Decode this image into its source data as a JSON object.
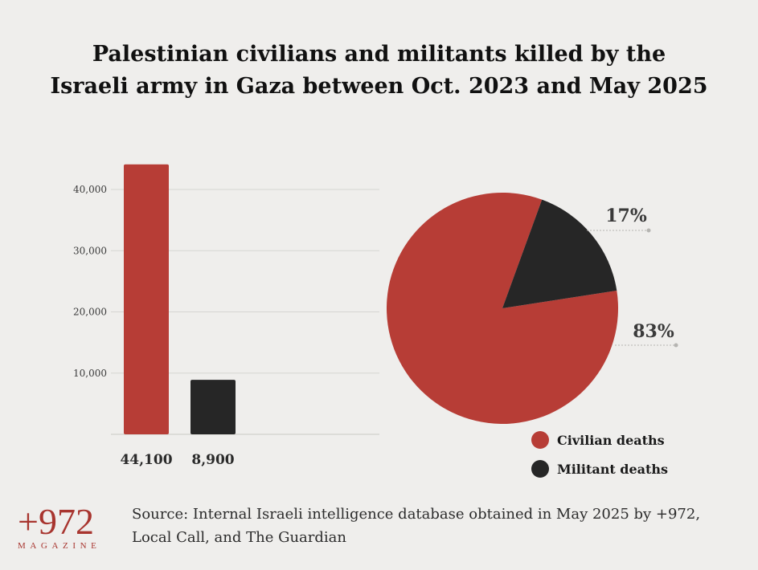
{
  "title": {
    "line1": "Palestinian civilians and militants killed by the",
    "line2": "Israeli army in Gaza between Oct. 2023 and May 2025"
  },
  "colors": {
    "civilian": "#b73d36",
    "militant": "#262626",
    "grid": "#d6d5d2",
    "logo": "#a8352f"
  },
  "chart_data": [
    {
      "type": "bar",
      "categories": [
        "Civilian deaths",
        "Militant deaths"
      ],
      "values": [
        44100,
        8900
      ],
      "data_labels": [
        "44,100",
        "8,900"
      ],
      "ylim": [
        0,
        40000
      ],
      "yticks": [
        10000,
        20000,
        30000,
        40000
      ],
      "ytick_labels": [
        "10,000",
        "20,000",
        "30,000",
        "40,000"
      ],
      "grid": true
    },
    {
      "type": "pie",
      "slices": [
        {
          "label": "Civilian deaths",
          "value": 83,
          "text": "83%"
        },
        {
          "label": "Militant deaths",
          "value": 17,
          "text": "17%"
        }
      ]
    }
  ],
  "legend": {
    "items": [
      "Civilian deaths",
      "Militant deaths"
    ]
  },
  "logo": {
    "main": "+972",
    "sub": "MAGAZINE"
  },
  "source": {
    "line1": "Source: Internal Israeli intelligence database obtained in May 2025 by +972,",
    "line2": "Local Call, and The Guardian"
  }
}
